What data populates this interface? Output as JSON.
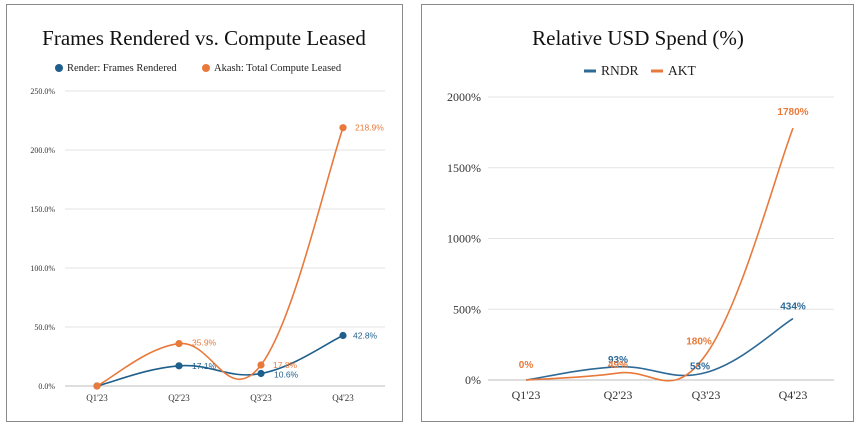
{
  "chart_data": [
    {
      "type": "line",
      "title": "Frames Rendered vs. Compute Leased",
      "categories": [
        "Q1'23",
        "Q2'23",
        "Q3'23",
        "Q4'23"
      ],
      "ylim": [
        0,
        250
      ],
      "yticks": [
        0,
        50,
        100,
        150,
        200,
        250
      ],
      "ytick_labels": [
        "0.0%",
        "50.0%",
        "100.0%",
        "150.0%",
        "200.0%",
        "250.0%"
      ],
      "grid": true,
      "legend": "top",
      "markers": true,
      "series": [
        {
          "name": "Render: Frames Rendered",
          "color": "#1f5f8b",
          "values": [
            0,
            17.1,
            10.6,
            42.8
          ],
          "labels": [
            "",
            "17.1%",
            "10.6%",
            "42.8%"
          ]
        },
        {
          "name": "Akash: Total Compute Leased",
          "color": "#e8793a",
          "values": [
            0,
            35.9,
            17.8,
            218.9
          ],
          "labels": [
            "",
            "35.9%",
            "17.8%",
            "218.9%"
          ]
        }
      ]
    },
    {
      "type": "line",
      "title": "Relative USD Spend (%)",
      "categories": [
        "Q1'23",
        "Q2'23",
        "Q3'23",
        "Q4'23"
      ],
      "ylim": [
        0,
        2000
      ],
      "yticks": [
        0,
        500,
        1000,
        1500,
        2000
      ],
      "ytick_labels": [
        "0%",
        "500%",
        "1000%",
        "1500%",
        "2000%"
      ],
      "grid": true,
      "legend": "top",
      "markers": false,
      "series": [
        {
          "name": "RNDR",
          "color": "#2e6a96",
          "values": [
            0,
            93,
            53,
            434
          ],
          "labels": [
            "",
            "93%",
            "53%",
            "434%"
          ]
        },
        {
          "name": "AKT",
          "color": "#e8793a",
          "values": [
            0,
            49,
            180,
            1780
          ],
          "labels": [
            "0%",
            "49%",
            "180%",
            "1780%"
          ]
        }
      ]
    }
  ]
}
